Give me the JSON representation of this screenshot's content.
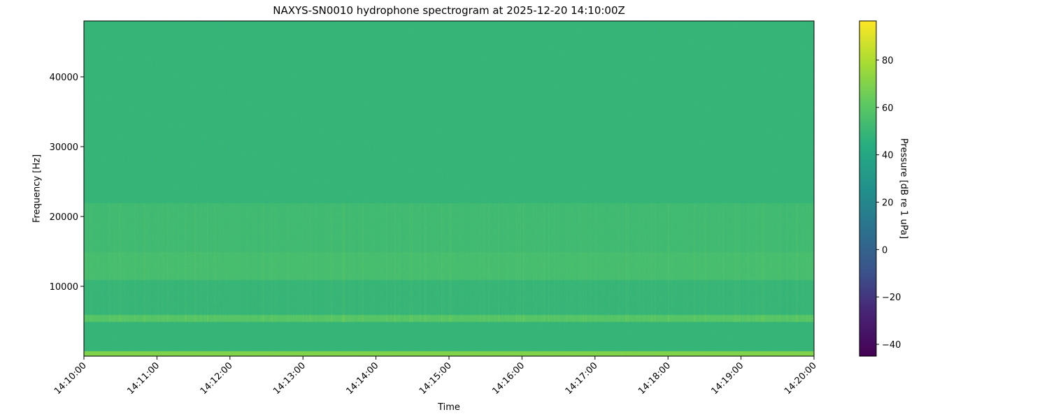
{
  "chart_data": {
    "type": "heatmap",
    "title": "NAXYS-SN0010 hydrophone spectrogram at 2025-12-20 14:10:00Z",
    "xlabel": "Time",
    "ylabel": "Frequency [Hz]",
    "colorbar_label": "Pressure [dB re 1 uPa]",
    "colormap": "viridis",
    "xlim": [
      "14:10:00",
      "14:20:00"
    ],
    "ylim": [
      0,
      48000
    ],
    "clim": [
      -45,
      96.5
    ],
    "x_ticks": [
      "14:10:00",
      "14:11:00",
      "14:12:00",
      "14:13:00",
      "14:14:00",
      "14:15:00",
      "14:16:00",
      "14:17:00",
      "14:18:00",
      "14:19:00",
      "14:20:00"
    ],
    "y_ticks": [
      10000,
      20000,
      30000,
      40000
    ],
    "colorbar_ticks": [
      -40,
      -20,
      0,
      20,
      40,
      60,
      80
    ],
    "grid": false,
    "features": [
      {
        "band_hz": [
          0,
          800
        ],
        "level_db": 70
      },
      {
        "band_hz": [
          5000,
          6000
        ],
        "level_db": 58
      },
      {
        "band_hz": [
          11000,
          15000
        ],
        "level_db": 54
      },
      {
        "band_hz": [
          15000,
          22000
        ],
        "level_db": 52
      },
      {
        "band_hz": [
          22000,
          48000
        ],
        "level_db": 49
      }
    ]
  }
}
